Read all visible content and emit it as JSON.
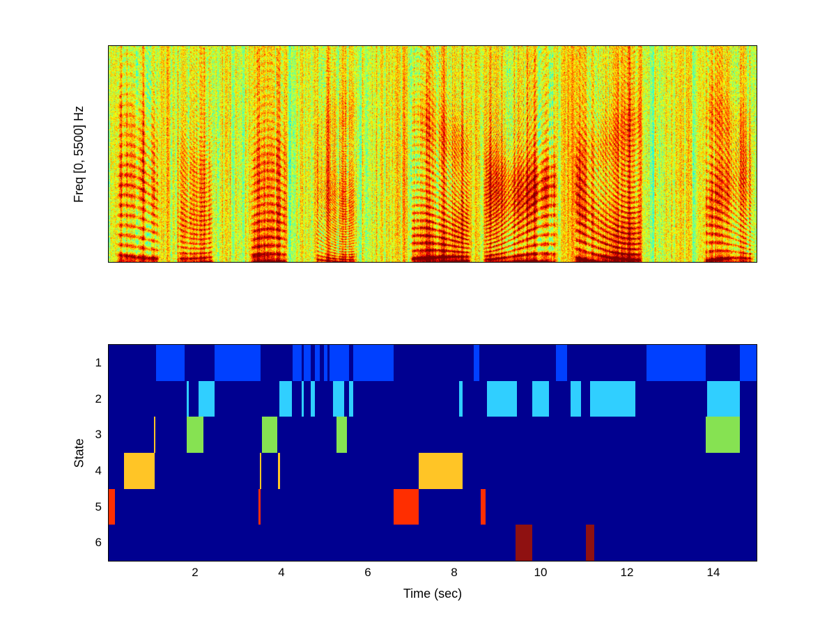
{
  "figure": {
    "background_color": "#ffffff"
  },
  "chart_data": [
    {
      "type": "heatmap",
      "subtype": "spectrogram",
      "title": "",
      "ylabel": "Freq [0, 5500] Hz",
      "x_range_sec": [
        0,
        15
      ],
      "freq_range_hz": [
        0,
        5500
      ],
      "colormap": "jet",
      "seed": 1337,
      "voiced_intervals": [
        [
          0.2,
          1.15,
          0.95
        ],
        [
          1.6,
          2.4,
          0.75
        ],
        [
          3.3,
          4.1,
          0.82
        ],
        [
          4.8,
          5.7,
          0.78
        ],
        [
          7.0,
          8.35,
          1.0
        ],
        [
          8.7,
          10.35,
          1.0
        ],
        [
          10.8,
          12.3,
          0.95
        ],
        [
          13.8,
          14.9,
          0.85
        ]
      ],
      "description": "Speech spectrogram with jet colormap: yellow-green noisy background, red harmonic striations during voiced segments, strongest dark-red energy at the lowest frequencies."
    },
    {
      "type": "heatmap",
      "subtype": "state-activation",
      "title": "",
      "xlabel": "Time (sec)",
      "ylabel": "State",
      "x_range_sec": [
        0,
        15
      ],
      "xticks": [
        2,
        4,
        6,
        8,
        10,
        12,
        14
      ],
      "yticks": [
        1,
        2,
        3,
        4,
        5,
        6
      ],
      "background_color": "#000090",
      "state_colors": [
        "#0040FF",
        "#30CFFF",
        "#86E252",
        "#FFC526",
        "#FF2E00",
        "#8F1111"
      ],
      "segments": [
        {
          "state": 1,
          "t": [
            1.1,
            1.76
          ]
        },
        {
          "state": 1,
          "t": [
            2.45,
            3.52
          ]
        },
        {
          "state": 1,
          "t": [
            4.25,
            4.46
          ]
        },
        {
          "state": 1,
          "t": [
            4.52,
            4.68
          ]
        },
        {
          "state": 1,
          "t": [
            4.78,
            4.88
          ]
        },
        {
          "state": 1,
          "t": [
            4.98,
            5.06
          ]
        },
        {
          "state": 1,
          "t": [
            5.12,
            5.56
          ]
        },
        {
          "state": 1,
          "t": [
            5.66,
            6.6
          ]
        },
        {
          "state": 1,
          "t": [
            8.45,
            8.58
          ]
        },
        {
          "state": 1,
          "t": [
            10.35,
            10.62
          ]
        },
        {
          "state": 1,
          "t": [
            12.45,
            13.82
          ]
        },
        {
          "state": 1,
          "t": [
            14.62,
            15.0
          ]
        },
        {
          "state": 2,
          "t": [
            1.8,
            1.86
          ]
        },
        {
          "state": 2,
          "t": [
            2.08,
            2.45
          ]
        },
        {
          "state": 2,
          "t": [
            3.95,
            4.25
          ]
        },
        {
          "state": 2,
          "t": [
            4.46,
            4.52
          ]
        },
        {
          "state": 2,
          "t": [
            4.68,
            4.78
          ]
        },
        {
          "state": 2,
          "t": [
            5.2,
            5.45
          ]
        },
        {
          "state": 2,
          "t": [
            5.56,
            5.66
          ]
        },
        {
          "state": 2,
          "t": [
            8.12,
            8.2
          ]
        },
        {
          "state": 2,
          "t": [
            8.75,
            9.45
          ]
        },
        {
          "state": 2,
          "t": [
            9.8,
            10.2
          ]
        },
        {
          "state": 2,
          "t": [
            10.7,
            10.93
          ]
        },
        {
          "state": 2,
          "t": [
            11.15,
            12.2
          ]
        },
        {
          "state": 2,
          "t": [
            13.85,
            14.62
          ]
        },
        {
          "state": 3,
          "t": [
            1.8,
            2.2
          ]
        },
        {
          "state": 3,
          "t": [
            3.55,
            3.9
          ]
        },
        {
          "state": 3,
          "t": [
            5.28,
            5.52
          ]
        },
        {
          "state": 3,
          "t": [
            13.82,
            14.62
          ]
        },
        {
          "state": 3,
          "t": [
            1.05,
            1.08
          ],
          "color": "#FFC526"
        },
        {
          "state": 4,
          "t": [
            0.35,
            1.06
          ]
        },
        {
          "state": 4,
          "t": [
            3.5,
            3.54
          ]
        },
        {
          "state": 4,
          "t": [
            3.92,
            3.96
          ]
        },
        {
          "state": 4,
          "t": [
            7.18,
            8.2
          ]
        },
        {
          "state": 5,
          "t": [
            0.0,
            0.14
          ]
        },
        {
          "state": 5,
          "t": [
            3.46,
            3.52
          ]
        },
        {
          "state": 5,
          "t": [
            6.6,
            7.18
          ]
        },
        {
          "state": 5,
          "t": [
            8.62,
            8.72
          ]
        },
        {
          "state": 6,
          "t": [
            9.42,
            9.8
          ]
        },
        {
          "state": 6,
          "t": [
            11.05,
            11.25
          ]
        }
      ]
    }
  ]
}
